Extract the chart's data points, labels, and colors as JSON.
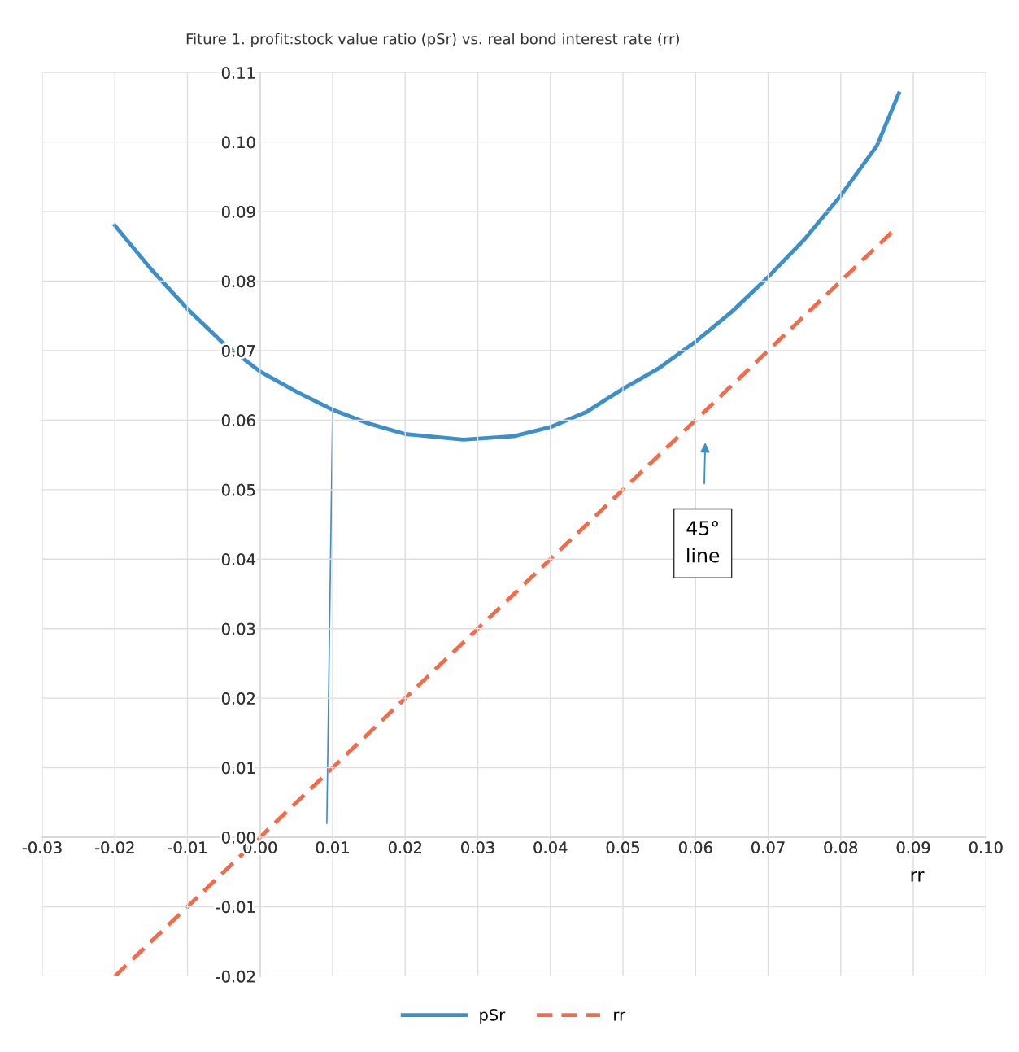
{
  "chart_data": {
    "type": "line",
    "title": "Fiture 1. profit:stock value ratio (pSr) vs. real bond interest rate (rr)",
    "xlabel": "rr",
    "series": [
      {
        "name": "pSr",
        "color": "#3d8fc9",
        "line_style": "solid",
        "x": [
          -0.02,
          -0.015,
          -0.01,
          -0.005,
          0.0,
          0.005,
          0.01,
          0.015,
          0.02,
          0.028,
          0.035,
          0.04,
          0.045,
          0.05,
          0.055,
          0.06,
          0.065,
          0.07,
          0.075,
          0.08,
          0.085,
          0.088
        ],
        "values": [
          0.088,
          0.0817,
          0.076,
          0.071,
          0.067,
          0.0641,
          0.0615,
          0.0595,
          0.058,
          0.0572,
          0.0577,
          0.059,
          0.0612,
          0.0645,
          0.0675,
          0.0713,
          0.0756,
          0.0806,
          0.086,
          0.0923,
          0.0995,
          0.107
        ]
      },
      {
        "color": "#3d8fc9",
        "line_style": "solid",
        "x": [
          0.01,
          0.0092
        ],
        "values": [
          0.0615,
          0.002
        ]
      },
      {
        "name": "rr",
        "color": "#f26b4a",
        "line_style": "dashed",
        "x": [
          -0.02,
          0.087
        ],
        "values": [
          -0.02,
          0.087
        ]
      }
    ],
    "annotations": [
      "45°\nline"
    ],
    "xlim": [
      -0.03,
      0.1
    ],
    "ylim": [
      -0.02,
      0.11
    ],
    "xticks": [
      {
        "value": -0.03,
        "label": "-0.03"
      },
      {
        "value": -0.02,
        "label": "-0.02"
      },
      {
        "value": -0.01,
        "label": "-0.01"
      },
      {
        "value": 0.0,
        "label": "0.00"
      },
      {
        "value": 0.01,
        "label": "0.01"
      },
      {
        "value": 0.02,
        "label": "0.02"
      },
      {
        "value": 0.03,
        "label": "0.03"
      },
      {
        "value": 0.04,
        "label": "0.04"
      },
      {
        "value": 0.05,
        "label": "0.05"
      },
      {
        "value": 0.06,
        "label": "0.06"
      },
      {
        "value": 0.07,
        "label": "0.07"
      },
      {
        "value": 0.08,
        "label": "0.08"
      },
      {
        "value": 0.09,
        "label": "0.09"
      },
      {
        "value": 0.1,
        "label": "0.10"
      }
    ],
    "yticks": [
      {
        "value": -0.02,
        "label": "-0.02"
      },
      {
        "value": -0.01,
        "label": "-0.01"
      },
      {
        "value": 0.0,
        "label": "0.00"
      },
      {
        "value": 0.01,
        "label": "0.01"
      },
      {
        "value": 0.02,
        "label": "0.02"
      },
      {
        "value": 0.03,
        "label": "0.03"
      },
      {
        "value": 0.04,
        "label": "0.04"
      },
      {
        "value": 0.05,
        "label": "0.05"
      },
      {
        "value": 0.06,
        "label": "0.06"
      },
      {
        "value": 0.07,
        "label": "0.07"
      },
      {
        "value": 0.08,
        "label": "0.08"
      },
      {
        "value": 0.09,
        "label": "0.09"
      },
      {
        "value": 0.1,
        "label": "0.10"
      },
      {
        "value": 0.11,
        "label": "0.11"
      }
    ],
    "grid": true,
    "legend": "bottom",
    "marker": "none"
  }
}
